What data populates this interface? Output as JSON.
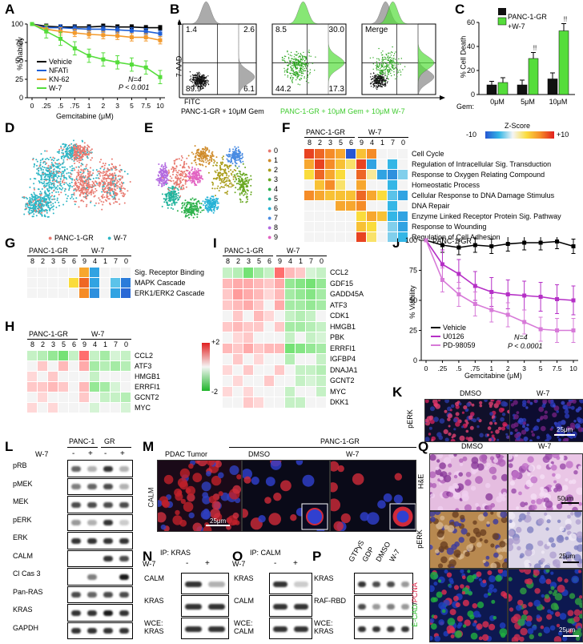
{
  "panels": {
    "A": "A",
    "B": "B",
    "C": "C",
    "D": "D",
    "E": "E",
    "F": "F",
    "G": "G",
    "H": "H",
    "I": "I",
    "J": "J",
    "K": "K",
    "L": "L",
    "M": "M",
    "N": "N",
    "O": "O",
    "P": "P",
    "Q": "Q"
  },
  "colors": {
    "vehicle": "#000000",
    "nfati": "#1f5fd6",
    "kn62": "#f39a2c",
    "w7": "#55dd3b",
    "u0126": "#b52fc6",
    "pd98059": "#d77ad8",
    "panc": "#111111",
    "w7bar": "#55dd3b",
    "flow_gray": "#888888",
    "flow_green": "#55dd3b",
    "heat_low": "#2b5fd9",
    "heat_high": "#e51f1f"
  },
  "panelA": {
    "ylabel": "% Viability",
    "xlabel": "Gemcitabine (μM)",
    "yticks": [
      "0",
      "25",
      "50",
      "75",
      "100"
    ],
    "xticks": [
      "0",
      ".25",
      ".5",
      ".75",
      "1",
      "2",
      "3",
      "5",
      "7.5",
      "10"
    ],
    "legend": [
      "Vehicle",
      "NFATi",
      "KN-62",
      "W-7"
    ],
    "annot1": "N=4",
    "annot2": "P < 0.001"
  },
  "chart_data": [
    {
      "type": "line",
      "xlabel": "Gemcitabine (μM)",
      "ylabel": "% Viability",
      "categories": [
        "0",
        ".25",
        ".5",
        ".75",
        "1",
        "2",
        "3",
        "5",
        "7.5",
        "10"
      ],
      "ylim": [
        0,
        100
      ],
      "series": [
        {
          "name": "Vehicle",
          "values": [
            100,
            97,
            96,
            96,
            96,
            97,
            96,
            96,
            95,
            95
          ]
        },
        {
          "name": "NFATi",
          "values": [
            100,
            95,
            95,
            94,
            93,
            93,
            92,
            91,
            90,
            87
          ]
        },
        {
          "name": "KN-62",
          "values": [
            100,
            93,
            90,
            88,
            86,
            85,
            84,
            82,
            82,
            78
          ]
        },
        {
          "name": "W-7",
          "values": [
            100,
            90,
            80,
            67,
            57,
            52,
            48,
            45,
            41,
            28
          ]
        }
      ]
    },
    {
      "type": "bar",
      "ylabel": "% Cell Death",
      "categories": [
        "0μM",
        "5μM",
        "10μM"
      ],
      "ylim": [
        0,
        60
      ],
      "series": [
        {
          "name": "PANC-1-GR",
          "values": [
            8,
            8,
            13
          ]
        },
        {
          "name": "+W-7",
          "values": [
            10,
            30,
            53
          ]
        }
      ]
    },
    {
      "type": "line",
      "xlabel": "Gemcitabine (μM)",
      "ylabel": "% Viability",
      "categories": [
        "0",
        ".25",
        ".5",
        ".75",
        "1",
        "2",
        "3",
        "5",
        "7.5",
        "10"
      ],
      "ylim": [
        0,
        100
      ],
      "series": [
        {
          "name": "Vehicle",
          "values": [
            100,
            96,
            94,
            96,
            95,
            97,
            98,
            98,
            99,
            95
          ]
        },
        {
          "name": "U0126",
          "values": [
            100,
            80,
            72,
            62,
            57,
            55,
            54,
            53,
            51,
            50
          ]
        },
        {
          "name": "PD-98059",
          "values": [
            100,
            67,
            55,
            47,
            42,
            38,
            32,
            26,
            25,
            25
          ]
        }
      ]
    }
  ],
  "panelB": {
    "quad1": [
      "1.4",
      "2.6",
      "89.9",
      "6.1"
    ],
    "quad2": [
      "8.5",
      "30.0",
      "44.2",
      "17.3"
    ],
    "merge": "Merge",
    "ylabel": "7-AAD",
    "xlabel": "FITC",
    "cap1": "PANC-1-GR + 10μM Gem",
    "cap2": "PANC-1-GR + 10μM Gem + 10μM W-7"
  },
  "panelC": {
    "legend": [
      "PANC-1-GR",
      "+W-7"
    ],
    "ylabel": "% Cell Death",
    "gem": "Gem:",
    "cats": [
      "0μM",
      "5μM",
      "10μM"
    ],
    "yticks": [
      "0",
      "20",
      "40",
      "60"
    ],
    "sig": "!!"
  },
  "panelD": {
    "legend": "PANC-1-GR",
    "legend2": "W-7"
  },
  "panelE": {
    "clusters": [
      "0",
      "1",
      "2",
      "3",
      "4",
      "5",
      "6",
      "7",
      "8",
      "9"
    ],
    "colors": [
      "#e8796f",
      "#cf8b2a",
      "#a99d1b",
      "#6aa823",
      "#2bb04a",
      "#22b39c",
      "#27b3d6",
      "#4a8ce2",
      "#b36ae0",
      "#e264c2"
    ]
  },
  "panelF": {
    "group1": "PANC-1-GR",
    "group2": "W-7",
    "cols": [
      "8",
      "2",
      "3",
      "5",
      "6",
      "9",
      "4",
      "1",
      "7",
      "0"
    ],
    "zscore": "Z-Score",
    "zmin": "-10",
    "zmax": "+10",
    "terms": [
      "Cell Cycle",
      "Regulation of Intracellular Sig. Transduction",
      "Response to Oxygen Relating Compound",
      "Homeostatic Process",
      "Cellular Response to DNA Damage Stimulus",
      "DNA Repair",
      "Enzyme Linked Receptor Protein Sig. Pathway",
      "Response to Wounding",
      "Regulation of Cell Adhesion"
    ]
  },
  "panelG": {
    "group1": "PANC-1-GR",
    "group2": "W-7",
    "cols": [
      "8",
      "2",
      "3",
      "5",
      "6",
      "9",
      "4",
      "1",
      "7",
      "0"
    ],
    "terms": [
      "Sig. Receptor Binding",
      "MAPK Cascade",
      "ERK1/ERK2 Cascade"
    ]
  },
  "panelH": {
    "group1": "PANC-1-GR",
    "group2": "W-7",
    "cols": [
      "8",
      "2",
      "3",
      "5",
      "6",
      "9",
      "4",
      "1",
      "7",
      "0"
    ],
    "genes": [
      "CCL2",
      "ATF3",
      "HMGB1",
      "ERRFI1",
      "GCNT2",
      "MYC"
    ],
    "smax": "+2",
    "smin": "-2"
  },
  "panelI": {
    "group1": "PANC-1-GR",
    "group2": "W-7",
    "cols": [
      "8",
      "2",
      "3",
      "5",
      "6",
      "9",
      "4",
      "1",
      "7",
      "0"
    ],
    "genes": [
      "CCL2",
      "GDF15",
      "GADD45A",
      "ATF3",
      "CDK1",
      "HMGB1",
      "PBK",
      "ERRFI1",
      "IGFBP4",
      "DNAJA1",
      "GCNT2",
      "MYC",
      "DKK1"
    ]
  },
  "panelJ": {
    "title": "PANC-1-GR",
    "ylabel": "% Viability",
    "xlabel": "Gemcitabine (μM)",
    "yticks": [
      "0",
      "25",
      "50",
      "75",
      "100"
    ],
    "xticks": [
      "0",
      ".25",
      ".5",
      ".75",
      "1",
      "2",
      "3",
      "5",
      "7.5",
      "10"
    ],
    "legend": [
      "Vehicle",
      "U0126",
      "PD-98059"
    ],
    "annot1": "N=4",
    "annot2": "P < 0.0001"
  },
  "panelK": {
    "dmso": "DMSO",
    "w7": "W-7",
    "stain": "pERK",
    "scale": "25μm"
  },
  "panelL": {
    "panc": "PANC-1",
    "gr": "GR",
    "w7": "W-7",
    "signs": [
      "-",
      "+",
      "-",
      "+"
    ],
    "rows": [
      "pRB",
      "pMEK",
      "MEK",
      "pERK",
      "ERK",
      "CALM",
      "Cl Cas 3",
      "Pan-RAS",
      "KRAS",
      "GAPDH"
    ]
  },
  "panelM": {
    "header": "PANC-1-GR",
    "t1": "PDAC Tumor",
    "t2": "DMSO",
    "t3": "W-7",
    "stain": "CALM",
    "scale": "25μm"
  },
  "panelN": {
    "title": "IP: KRAS",
    "w7": "W-7",
    "signs": [
      "-",
      "+"
    ],
    "rows": [
      "CALM",
      "KRAS",
      "WCE:\nKRAS"
    ]
  },
  "panelO": {
    "title": "IP: CALM",
    "w7": "W-7",
    "signs": [
      "-",
      "+"
    ],
    "rows": [
      "KRAS",
      "CALM",
      "WCE:\nCALM"
    ]
  },
  "panelP": {
    "cols": [
      "GTPγS",
      "GDP",
      "DMSO",
      "W-7"
    ],
    "rows": [
      "KRAS",
      "RAF-RBD",
      "WCE:\nKRAS"
    ]
  },
  "panelQ": {
    "dmso": "DMSO",
    "w7": "W-7",
    "rows": [
      "H&E",
      "pERK"
    ],
    "ecad": "E-CAD",
    "slash": "/",
    "pcna": "PCNA",
    "scale1": "50μm",
    "scale2": "25μm",
    "scale3": "25μm"
  }
}
